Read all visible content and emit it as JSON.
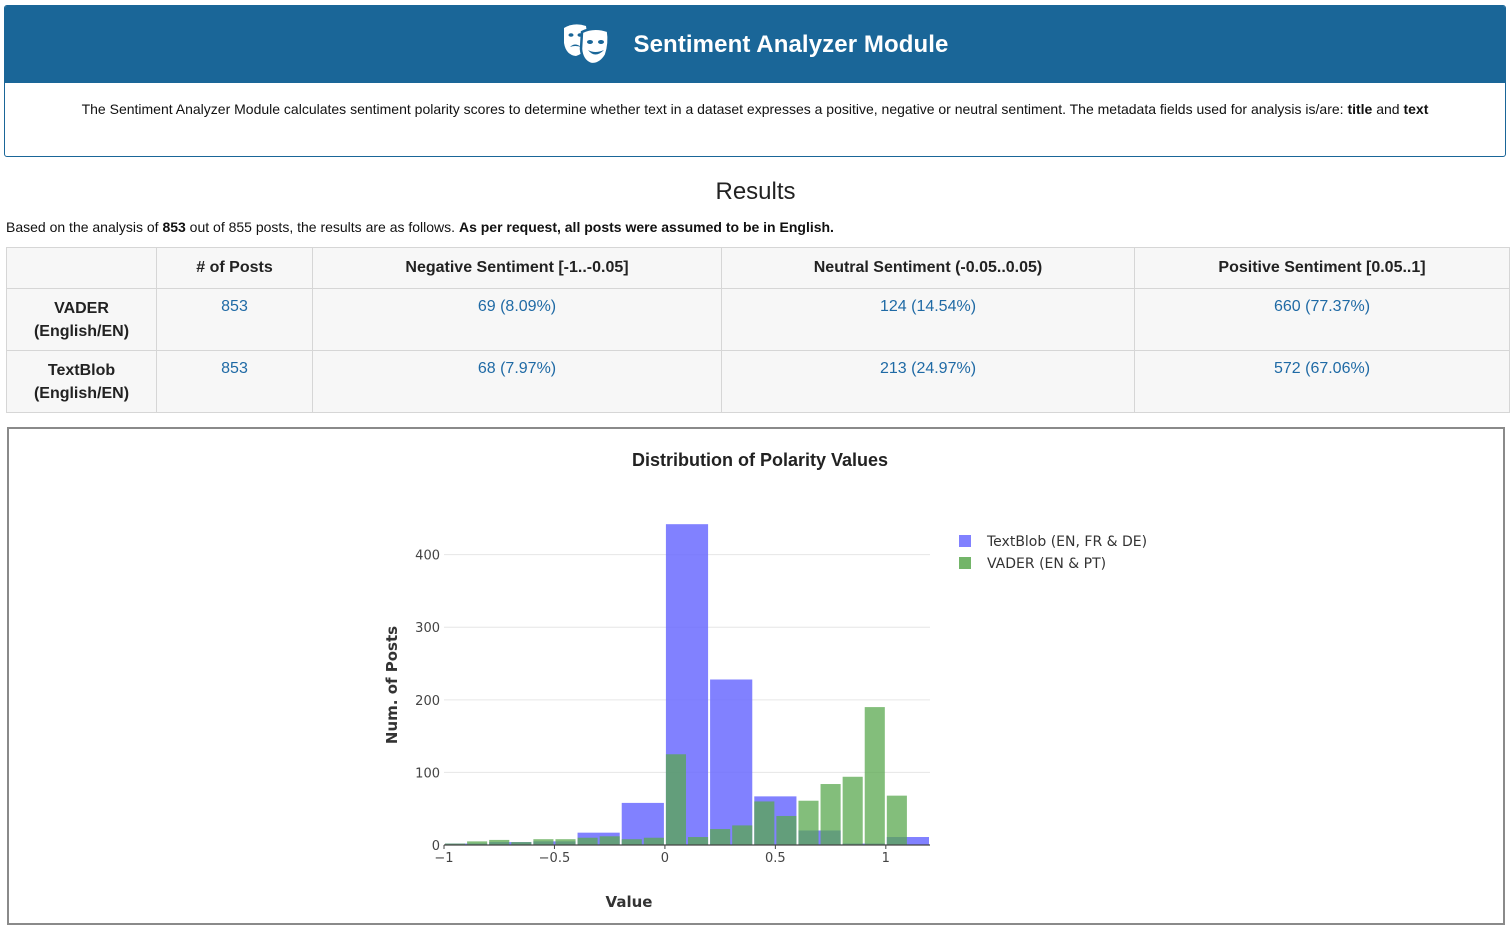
{
  "header": {
    "title": "Sentiment Analyzer Module",
    "icon": "theater-masks-icon",
    "background": "#1a6698"
  },
  "description": {
    "text_prefix": "The Sentiment Analyzer Module calculates sentiment polarity scores to determine whether text in a dataset expresses a positive, negative or neutral sentiment. The metadata fields used for analysis is/are: ",
    "field1": "title",
    "and_word": " and ",
    "field2": "text"
  },
  "results": {
    "title": "Results",
    "summary_prefix": "Based on the analysis of ",
    "analyzed": "853",
    "summary_middle": " out of 855 posts, the results are as follows. ",
    "summary_note": "As per request, all posts were assumed to be in English."
  },
  "table": {
    "columns": [
      "",
      "# of Posts",
      "Negative Sentiment [-1..-0.05]",
      "Neutral Sentiment (-0.05..0.05)",
      "Positive Sentiment [0.05..1]"
    ],
    "rows": [
      {
        "name_line1": "VADER",
        "name_line2": "(English/EN)",
        "posts": "853",
        "negative": "69 (8.09%)",
        "neutral": "124 (14.54%)",
        "positive": "660 (77.37%)"
      },
      {
        "name_line1": "TextBlob",
        "name_line2": "(English/EN)",
        "posts": "853",
        "negative": "68 (7.97%)",
        "neutral": "213 (24.97%)",
        "positive": "572 (67.06%)"
      }
    ]
  },
  "chart_data": {
    "type": "bar",
    "title": "Distribution of Polarity Values",
    "xlabel": "Value",
    "ylabel": "Num. of Posts",
    "xlim": [
      -1,
      1.2
    ],
    "ylim": [
      0,
      445
    ],
    "xticks": [
      -1,
      -0.5,
      0,
      0.5,
      1
    ],
    "xtick_labels": [
      "−1",
      "−0.5",
      "0",
      "0.5",
      "1"
    ],
    "yticks": [
      0,
      100,
      200,
      300,
      400
    ],
    "grid": true,
    "legend_position": "top-right",
    "series": [
      {
        "name": "TextBlob (EN, FR & DE)",
        "color": "#6b6bff",
        "bin_width": 0.2,
        "x": [
          -0.9,
          -0.7,
          -0.5,
          -0.3,
          -0.1,
          0.1,
          0.3,
          0.5,
          0.7,
          0.9,
          1.1
        ],
        "values": [
          2,
          4,
          5,
          17,
          58,
          442,
          228,
          67,
          20,
          2,
          11
        ]
      },
      {
        "name": "VADER (EN & PT)",
        "color": "#5aa84f",
        "bin_width": 0.1,
        "x": [
          -0.95,
          -0.85,
          -0.75,
          -0.65,
          -0.55,
          -0.45,
          -0.35,
          -0.25,
          -0.15,
          -0.05,
          0.05,
          0.15,
          0.25,
          0.35,
          0.45,
          0.55,
          0.65,
          0.75,
          0.85,
          0.95,
          1.05
        ],
        "values": [
          2,
          5,
          7,
          4,
          8,
          8,
          10,
          12,
          8,
          10,
          125,
          11,
          22,
          27,
          60,
          40,
          61,
          84,
          94,
          190,
          68
        ]
      }
    ]
  }
}
